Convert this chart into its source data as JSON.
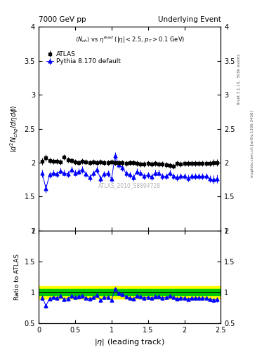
{
  "title_left": "7000 GeV pp",
  "title_right": "Underlying Event",
  "ylabel_main": "$\\langle d^2 N_{chg}/d\\eta d\\phi \\rangle$",
  "ylabel_ratio": "Ratio to ATLAS",
  "xlabel": "$|\\eta|$ (leading track)",
  "annotation": "$\\langle N_{ch} \\rangle$ vs $\\eta^{lead}$ ($|\\eta| < 2.5$, $p_T > 0.1$ GeV)",
  "watermark": "ATLAS_2010_S8894728",
  "right_label1": "Rivet 3.1.10,  500k events",
  "right_label2": "mcplots.cern.ch [arXiv:1306.3436]",
  "ylim_main": [
    1.0,
    4.0
  ],
  "ylim_ratio": [
    0.5,
    2.0
  ],
  "xlim": [
    0.0,
    2.5
  ],
  "atlas_x": [
    0.05,
    0.1,
    0.15,
    0.2,
    0.25,
    0.3,
    0.35,
    0.4,
    0.45,
    0.5,
    0.55,
    0.6,
    0.65,
    0.7,
    0.75,
    0.8,
    0.85,
    0.9,
    0.95,
    1.0,
    1.05,
    1.1,
    1.15,
    1.2,
    1.25,
    1.3,
    1.35,
    1.4,
    1.45,
    1.5,
    1.55,
    1.6,
    1.65,
    1.7,
    1.75,
    1.8,
    1.85,
    1.9,
    1.95,
    2.0,
    2.05,
    2.1,
    2.15,
    2.2,
    2.25,
    2.3,
    2.35,
    2.4,
    2.45
  ],
  "atlas_y": [
    2.02,
    2.07,
    2.03,
    2.02,
    2.02,
    2.01,
    2.08,
    2.04,
    2.03,
    2.01,
    2.0,
    2.02,
    2.01,
    2.0,
    2.01,
    2.0,
    2.01,
    2.0,
    2.0,
    2.01,
    2.0,
    2.0,
    2.0,
    1.99,
    2.0,
    2.0,
    1.99,
    1.98,
    1.98,
    1.99,
    1.98,
    1.99,
    1.98,
    1.98,
    1.97,
    1.96,
    1.95,
    1.99,
    1.98,
    1.99,
    1.99,
    1.99,
    1.99,
    1.99,
    1.99,
    1.99,
    1.99,
    2.0,
    2.0
  ],
  "atlas_yerr": [
    0.05,
    0.05,
    0.04,
    0.04,
    0.04,
    0.04,
    0.04,
    0.04,
    0.04,
    0.04,
    0.04,
    0.04,
    0.04,
    0.04,
    0.04,
    0.04,
    0.04,
    0.04,
    0.04,
    0.04,
    0.04,
    0.04,
    0.04,
    0.04,
    0.04,
    0.04,
    0.04,
    0.04,
    0.04,
    0.04,
    0.04,
    0.04,
    0.04,
    0.04,
    0.04,
    0.04,
    0.04,
    0.04,
    0.04,
    0.04,
    0.04,
    0.04,
    0.04,
    0.04,
    0.04,
    0.04,
    0.04,
    0.05,
    0.05
  ],
  "pythia_x": [
    0.05,
    0.1,
    0.15,
    0.2,
    0.25,
    0.3,
    0.35,
    0.4,
    0.45,
    0.5,
    0.55,
    0.6,
    0.65,
    0.7,
    0.75,
    0.8,
    0.85,
    0.9,
    0.95,
    1.0,
    1.05,
    1.1,
    1.15,
    1.2,
    1.25,
    1.3,
    1.35,
    1.4,
    1.45,
    1.5,
    1.55,
    1.6,
    1.65,
    1.7,
    1.75,
    1.8,
    1.85,
    1.9,
    1.95,
    2.0,
    2.05,
    2.1,
    2.15,
    2.2,
    2.25,
    2.3,
    2.35,
    2.4,
    2.45
  ],
  "pythia_y": [
    1.84,
    1.62,
    1.82,
    1.85,
    1.83,
    1.88,
    1.85,
    1.83,
    1.9,
    1.85,
    1.87,
    1.9,
    1.83,
    1.78,
    1.84,
    1.9,
    1.76,
    1.83,
    1.84,
    1.76,
    2.1,
    1.97,
    1.93,
    1.84,
    1.82,
    1.78,
    1.87,
    1.85,
    1.8,
    1.82,
    1.79,
    1.85,
    1.85,
    1.8,
    1.8,
    1.85,
    1.8,
    1.78,
    1.8,
    1.8,
    1.77,
    1.8,
    1.8,
    1.8,
    1.8,
    1.8,
    1.76,
    1.75,
    1.76
  ],
  "pythia_yerr": [
    0.06,
    0.06,
    0.05,
    0.05,
    0.05,
    0.05,
    0.05,
    0.05,
    0.05,
    0.05,
    0.05,
    0.05,
    0.05,
    0.05,
    0.05,
    0.05,
    0.05,
    0.05,
    0.05,
    0.05,
    0.05,
    0.05,
    0.05,
    0.05,
    0.05,
    0.05,
    0.05,
    0.05,
    0.05,
    0.05,
    0.05,
    0.05,
    0.05,
    0.05,
    0.05,
    0.05,
    0.05,
    0.05,
    0.05,
    0.05,
    0.05,
    0.05,
    0.05,
    0.05,
    0.05,
    0.05,
    0.05,
    0.06,
    0.06
  ],
  "atlas_color": "black",
  "pythia_color": "blue",
  "band_yellow": "#ffff00",
  "band_green": "#00cc00"
}
